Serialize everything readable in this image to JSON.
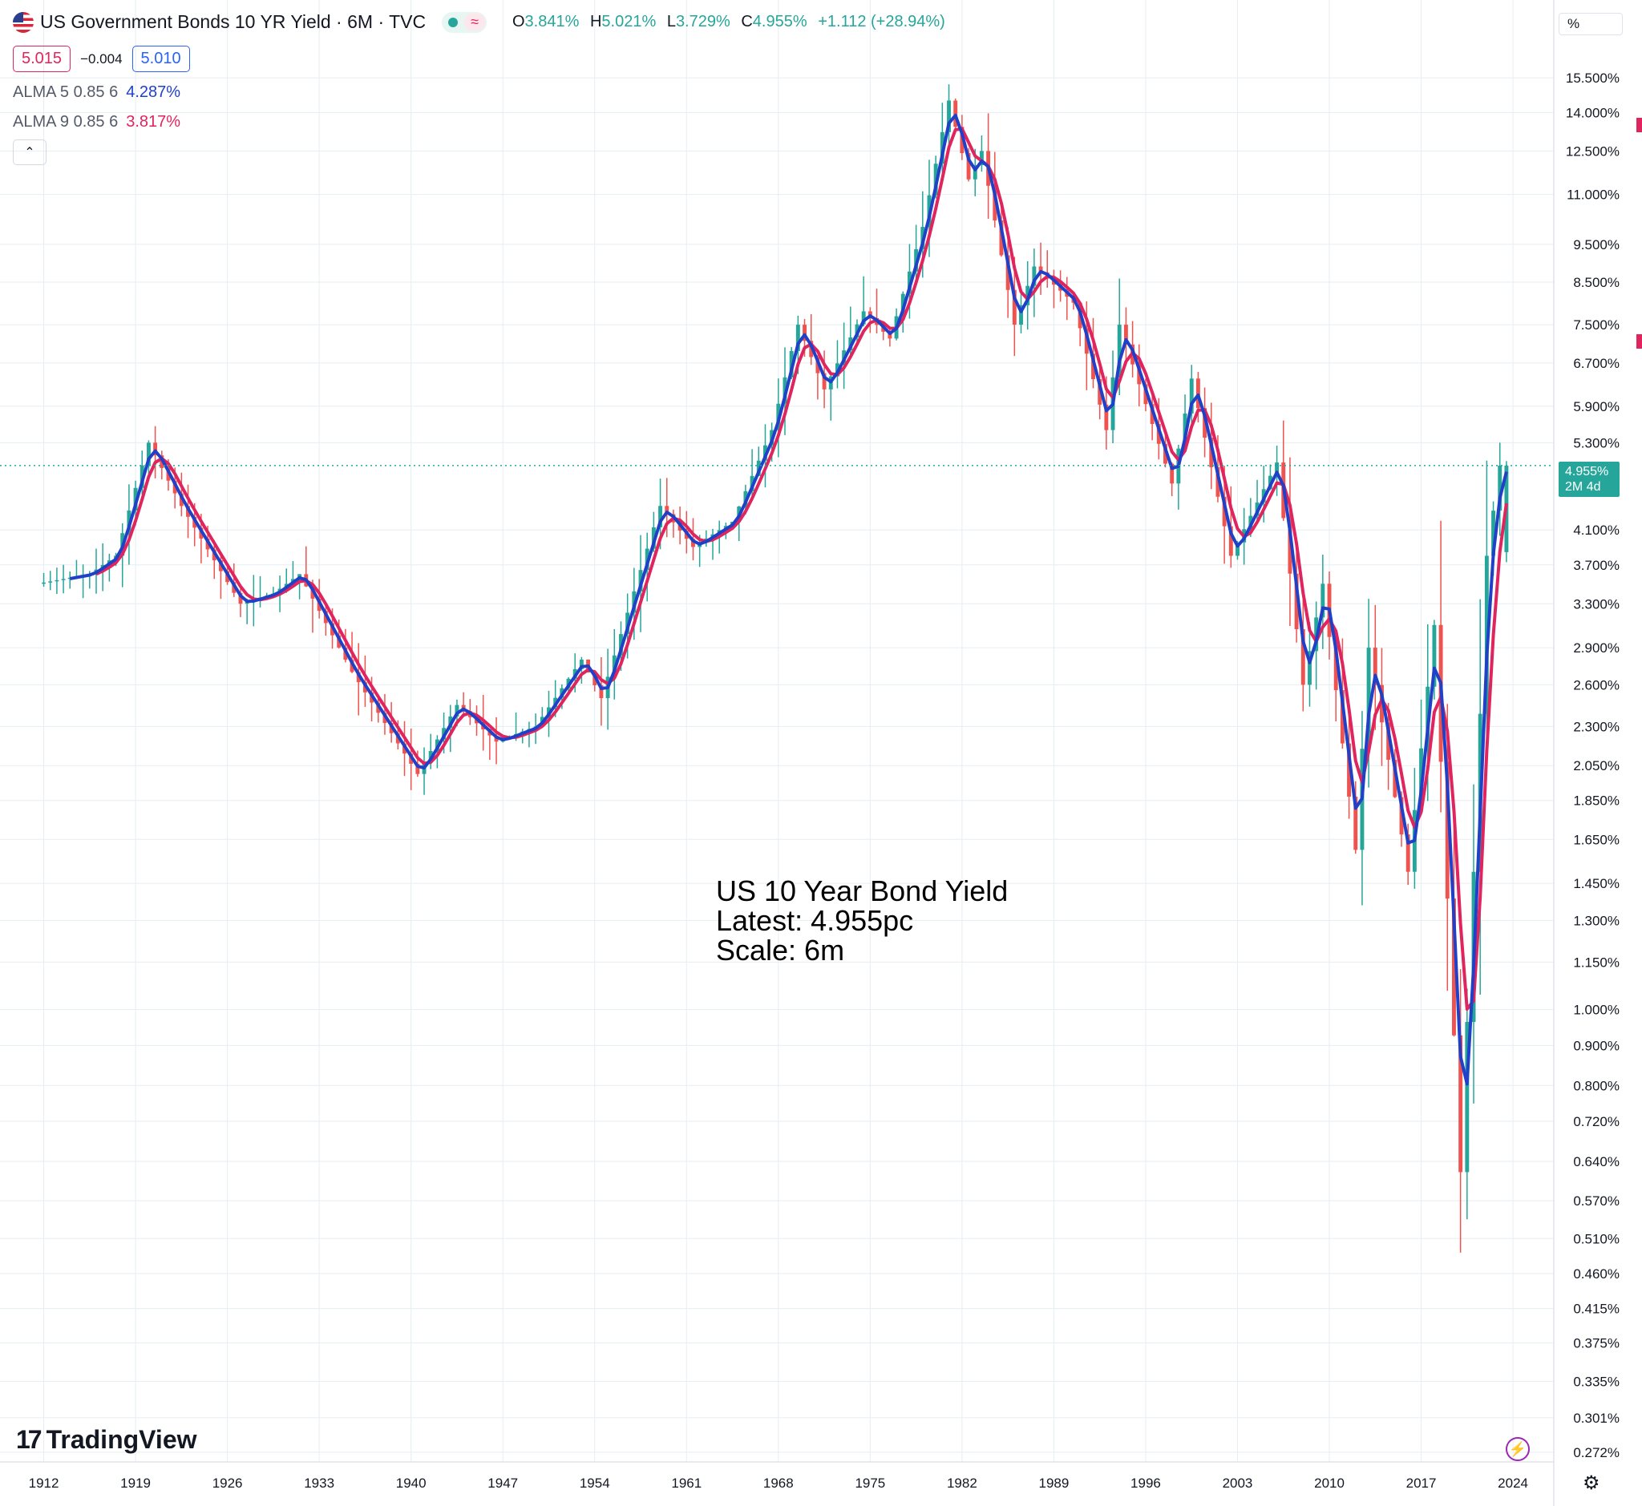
{
  "header": {
    "title": "US Government Bonds 10 YR Yield · 6M · TVC",
    "wave_icon": "≈",
    "ohlc": {
      "o_label": "O",
      "o": "3.841%",
      "h_label": "H",
      "h": "5.021%",
      "l_label": "L",
      "l": "3.729%",
      "c_label": "C",
      "c": "4.955%",
      "change": "+1.112 (+28.94%)"
    }
  },
  "quote": {
    "bid": "5.015",
    "spread": "−0.004",
    "ask": "5.010"
  },
  "indicators": [
    {
      "label": "ALMA 5 0.85 6",
      "value": "4.287%",
      "color": "#2040c8"
    },
    {
      "label": "ALMA 9 0.85 6",
      "value": "3.817%",
      "color": "#e0245e"
    }
  ],
  "collapse_icon": "⌃",
  "annotation": [
    "US 10 Year Bond Yield",
    "Latest: 4.955pc",
    "Scale: 6m"
  ],
  "price_scale": {
    "unit": "%",
    "last_value": "4.955%",
    "countdown": "2M 4d"
  },
  "branding": {
    "logo_mark": "17",
    "logo_text": "TradingView"
  },
  "icons": {
    "settings": "⚙",
    "bolt": "⚡"
  },
  "colors": {
    "up": "#26a69a",
    "down": "#ef5350",
    "alma5": "#2040c8",
    "alma9": "#e0245e",
    "grid": "#e6eef2"
  },
  "chart_data": {
    "type": "candlestick",
    "interval": "6M",
    "y_scale": "log",
    "ylim": [
      0.27,
      17.0
    ],
    "y_ticks": [
      "15.500%",
      "14.000%",
      "12.500%",
      "11.000%",
      "9.500%",
      "8.500%",
      "7.500%",
      "6.700%",
      "5.900%",
      "5.300%",
      "4.100%",
      "3.700%",
      "3.300%",
      "2.900%",
      "2.600%",
      "2.300%",
      "2.050%",
      "1.850%",
      "1.650%",
      "1.450%",
      "1.300%",
      "1.150%",
      "1.000%",
      "0.900%",
      "0.800%",
      "0.720%",
      "0.640%",
      "0.570%",
      "0.510%",
      "0.460%",
      "0.415%",
      "0.375%",
      "0.335%",
      "0.301%",
      "0.272%"
    ],
    "x_ticks": [
      "1912",
      "1919",
      "1926",
      "1933",
      "1940",
      "1947",
      "1954",
      "1961",
      "1968",
      "1975",
      "1982",
      "1989",
      "1996",
      "2003",
      "2010",
      "2017",
      "2024"
    ],
    "x_range": [
      1910.5,
      2026.5
    ],
    "last_price": 4.955,
    "key_points": [
      {
        "year": 1912.0,
        "value": 3.5
      },
      {
        "year": 1916.0,
        "value": 3.6
      },
      {
        "year": 1918.0,
        "value": 3.8
      },
      {
        "year": 1920.5,
        "value": 5.3
      },
      {
        "year": 1923.0,
        "value": 4.4
      },
      {
        "year": 1927.5,
        "value": 3.3
      },
      {
        "year": 1930.0,
        "value": 3.4
      },
      {
        "year": 1932.0,
        "value": 3.6
      },
      {
        "year": 1936.0,
        "value": 2.7
      },
      {
        "year": 1941.0,
        "value": 2.0
      },
      {
        "year": 1944.0,
        "value": 2.45
      },
      {
        "year": 1947.0,
        "value": 2.2
      },
      {
        "year": 1950.0,
        "value": 2.3
      },
      {
        "year": 1953.5,
        "value": 2.8
      },
      {
        "year": 1955.0,
        "value": 2.5
      },
      {
        "year": 1959.5,
        "value": 4.4
      },
      {
        "year": 1962.0,
        "value": 3.9
      },
      {
        "year": 1965.0,
        "value": 4.2
      },
      {
        "year": 1968.0,
        "value": 5.5
      },
      {
        "year": 1970.0,
        "value": 7.5
      },
      {
        "year": 1972.0,
        "value": 6.2
      },
      {
        "year": 1975.0,
        "value": 7.8
      },
      {
        "year": 1977.0,
        "value": 7.2
      },
      {
        "year": 1979.5,
        "value": 10.0
      },
      {
        "year": 1981.5,
        "value": 14.5
      },
      {
        "year": 1983.0,
        "value": 11.5
      },
      {
        "year": 1984.0,
        "value": 12.5
      },
      {
        "year": 1986.5,
        "value": 7.5
      },
      {
        "year": 1988.0,
        "value": 8.9
      },
      {
        "year": 1991.0,
        "value": 8.0
      },
      {
        "year": 1993.5,
        "value": 5.5
      },
      {
        "year": 1994.5,
        "value": 7.5
      },
      {
        "year": 1998.5,
        "value": 4.7
      },
      {
        "year": 2000.0,
        "value": 6.4
      },
      {
        "year": 2003.0,
        "value": 3.8
      },
      {
        "year": 2006.5,
        "value": 5.0
      },
      {
        "year": 2008.5,
        "value": 2.6
      },
      {
        "year": 2010.0,
        "value": 3.5
      },
      {
        "year": 2012.5,
        "value": 1.6
      },
      {
        "year": 2013.5,
        "value": 2.9
      },
      {
        "year": 2016.5,
        "value": 1.5
      },
      {
        "year": 2018.5,
        "value": 3.1
      },
      {
        "year": 2020.5,
        "value": 0.62
      },
      {
        "year": 2021.5,
        "value": 1.5
      },
      {
        "year": 2022.5,
        "value": 3.8
      },
      {
        "year": 2023.5,
        "value": 4.955
      }
    ],
    "last_bar": {
      "open": 3.841,
      "high": 5.021,
      "low": 3.729,
      "close": 4.955
    },
    "series": [
      {
        "name": "ALMA 5 0.85 6",
        "color": "#2040c8",
        "last": 4.287
      },
      {
        "name": "ALMA 9 0.85 6",
        "color": "#e0245e",
        "last": 3.817
      }
    ]
  }
}
